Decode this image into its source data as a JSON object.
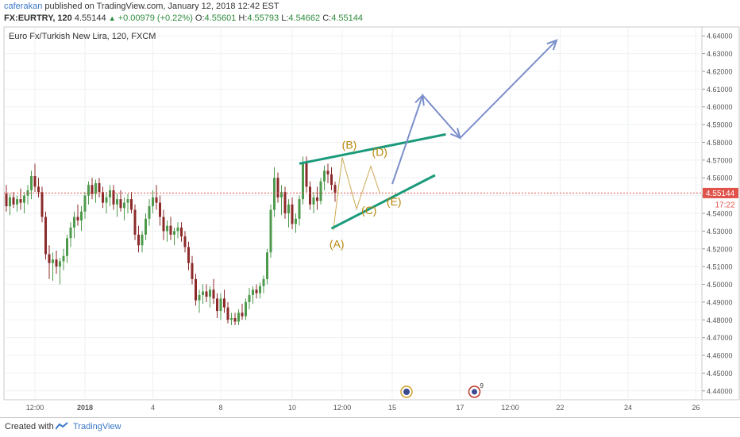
{
  "header": {
    "author": "caferakan",
    "published_text": "published on TradingView.com, January 12, 2018 12:42 EST",
    "symbol": "FX:EURTRY, 120",
    "last": "4.55144",
    "change": "+0.00979 (+0.22%)",
    "open_label": "O:",
    "open": "4.55601",
    "high_label": "H:",
    "high": "4.55793",
    "low_label": "L:",
    "low": "4.54662",
    "close_label": "C:",
    "close": "4.55144"
  },
  "footer": {
    "created_with": "Created with",
    "brand": "TradingView",
    "logo_icon": "tradingview-logo-icon"
  },
  "chart_data": {
    "type": "candlestick",
    "title": "Euro Fx/Turkish New Lira, 120, FXCM",
    "ylim": [
      4.435,
      4.645
    ],
    "y_ticks": [
      "4.44000",
      "4.45000",
      "4.46000",
      "4.47000",
      "4.48000",
      "4.49000",
      "4.50000",
      "4.51000",
      "4.52000",
      "4.53000",
      "4.54000",
      "4.55000",
      "4.56000",
      "4.57000",
      "4.58000",
      "4.59000",
      "4.60000",
      "4.61000",
      "4.62000",
      "4.63000",
      "4.64000"
    ],
    "x_ticks": [
      "12:00",
      "2018",
      "4",
      "8",
      "10",
      "12:00",
      "15",
      "17",
      "12:00",
      "22",
      "24",
      "26"
    ],
    "last_price_label": "4.55144",
    "countdown_label": "17:22",
    "colors": {
      "up": "#4e9a4c",
      "down": "#8c2a2a",
      "wave_lines": "#1a9a7a",
      "projection": "#7b8fcb",
      "wave_labels": "#b8860b",
      "last_price": "#e0524a"
    },
    "candles": [
      {
        "o": 4.551,
        "h": 4.556,
        "l": 4.541,
        "c": 4.544
      },
      {
        "o": 4.544,
        "h": 4.551,
        "l": 4.539,
        "c": 4.549
      },
      {
        "o": 4.549,
        "h": 4.552,
        "l": 4.543,
        "c": 4.545
      },
      {
        "o": 4.545,
        "h": 4.55,
        "l": 4.541,
        "c": 4.548
      },
      {
        "o": 4.548,
        "h": 4.554,
        "l": 4.542,
        "c": 4.546
      },
      {
        "o": 4.546,
        "h": 4.552,
        "l": 4.54,
        "c": 4.55
      },
      {
        "o": 4.55,
        "h": 4.556,
        "l": 4.545,
        "c": 4.553
      },
      {
        "o": 4.553,
        "h": 4.564,
        "l": 4.548,
        "c": 4.561
      },
      {
        "o": 4.561,
        "h": 4.568,
        "l": 4.552,
        "c": 4.555
      },
      {
        "o": 4.555,
        "h": 4.56,
        "l": 4.549,
        "c": 4.552
      },
      {
        "o": 4.552,
        "h": 4.555,
        "l": 4.535,
        "c": 4.538
      },
      {
        "o": 4.538,
        "h": 4.541,
        "l": 4.514,
        "c": 4.517
      },
      {
        "o": 4.517,
        "h": 4.522,
        "l": 4.503,
        "c": 4.512
      },
      {
        "o": 4.512,
        "h": 4.518,
        "l": 4.502,
        "c": 4.514
      },
      {
        "o": 4.514,
        "h": 4.519,
        "l": 4.506,
        "c": 4.51
      },
      {
        "o": 4.51,
        "h": 4.515,
        "l": 4.5,
        "c": 4.513
      },
      {
        "o": 4.513,
        "h": 4.52,
        "l": 4.508,
        "c": 4.516
      },
      {
        "o": 4.516,
        "h": 4.528,
        "l": 4.512,
        "c": 4.526
      },
      {
        "o": 4.526,
        "h": 4.535,
        "l": 4.521,
        "c": 4.532
      },
      {
        "o": 4.532,
        "h": 4.541,
        "l": 4.526,
        "c": 4.538
      },
      {
        "o": 4.538,
        "h": 4.545,
        "l": 4.533,
        "c": 4.536
      },
      {
        "o": 4.536,
        "h": 4.544,
        "l": 4.53,
        "c": 4.541
      },
      {
        "o": 4.541,
        "h": 4.552,
        "l": 4.537,
        "c": 4.55
      },
      {
        "o": 4.55,
        "h": 4.558,
        "l": 4.545,
        "c": 4.556
      },
      {
        "o": 4.556,
        "h": 4.56,
        "l": 4.548,
        "c": 4.551
      },
      {
        "o": 4.551,
        "h": 4.559,
        "l": 4.546,
        "c": 4.557
      },
      {
        "o": 4.557,
        "h": 4.56,
        "l": 4.549,
        "c": 4.552
      },
      {
        "o": 4.552,
        "h": 4.555,
        "l": 4.543,
        "c": 4.546
      },
      {
        "o": 4.546,
        "h": 4.552,
        "l": 4.54,
        "c": 4.549
      },
      {
        "o": 4.549,
        "h": 4.556,
        "l": 4.544,
        "c": 4.553
      },
      {
        "o": 4.553,
        "h": 4.556,
        "l": 4.542,
        "c": 4.545
      },
      {
        "o": 4.545,
        "h": 4.551,
        "l": 4.538,
        "c": 4.548
      },
      {
        "o": 4.548,
        "h": 4.553,
        "l": 4.541,
        "c": 4.543
      },
      {
        "o": 4.543,
        "h": 4.549,
        "l": 4.536,
        "c": 4.546
      },
      {
        "o": 4.546,
        "h": 4.551,
        "l": 4.54,
        "c": 4.548
      },
      {
        "o": 4.548,
        "h": 4.552,
        "l": 4.54,
        "c": 4.542
      },
      {
        "o": 4.542,
        "h": 4.545,
        "l": 4.525,
        "c": 4.528
      },
      {
        "o": 4.528,
        "h": 4.533,
        "l": 4.518,
        "c": 4.522
      },
      {
        "o": 4.522,
        "h": 4.53,
        "l": 4.518,
        "c": 4.528
      },
      {
        "o": 4.528,
        "h": 4.54,
        "l": 4.525,
        "c": 4.537
      },
      {
        "o": 4.537,
        "h": 4.548,
        "l": 4.533,
        "c": 4.544
      },
      {
        "o": 4.544,
        "h": 4.553,
        "l": 4.54,
        "c": 4.549
      },
      {
        "o": 4.549,
        "h": 4.556,
        "l": 4.542,
        "c": 4.546
      },
      {
        "o": 4.546,
        "h": 4.55,
        "l": 4.533,
        "c": 4.538
      },
      {
        "o": 4.538,
        "h": 4.542,
        "l": 4.525,
        "c": 4.53
      },
      {
        "o": 4.53,
        "h": 4.536,
        "l": 4.524,
        "c": 4.533
      },
      {
        "o": 4.533,
        "h": 4.538,
        "l": 4.525,
        "c": 4.528
      },
      {
        "o": 4.528,
        "h": 4.532,
        "l": 4.522,
        "c": 4.53
      },
      {
        "o": 4.53,
        "h": 4.535,
        "l": 4.526,
        "c": 4.532
      },
      {
        "o": 4.532,
        "h": 4.535,
        "l": 4.524,
        "c": 4.527
      },
      {
        "o": 4.527,
        "h": 4.53,
        "l": 4.518,
        "c": 4.521
      },
      {
        "o": 4.521,
        "h": 4.524,
        "l": 4.508,
        "c": 4.512
      },
      {
        "o": 4.512,
        "h": 4.516,
        "l": 4.5,
        "c": 4.503
      },
      {
        "o": 4.503,
        "h": 4.506,
        "l": 4.488,
        "c": 4.491
      },
      {
        "o": 4.491,
        "h": 4.497,
        "l": 4.484,
        "c": 4.494
      },
      {
        "o": 4.494,
        "h": 4.5,
        "l": 4.489,
        "c": 4.496
      },
      {
        "o": 4.496,
        "h": 4.5,
        "l": 4.49,
        "c": 4.493
      },
      {
        "o": 4.493,
        "h": 4.499,
        "l": 4.487,
        "c": 4.497
      },
      {
        "o": 4.497,
        "h": 4.503,
        "l": 4.489,
        "c": 4.492
      },
      {
        "o": 4.492,
        "h": 4.495,
        "l": 4.481,
        "c": 4.485
      },
      {
        "o": 4.485,
        "h": 4.495,
        "l": 4.48,
        "c": 4.492
      },
      {
        "o": 4.492,
        "h": 4.497,
        "l": 4.484,
        "c": 4.487
      },
      {
        "o": 4.487,
        "h": 4.49,
        "l": 4.478,
        "c": 4.48
      },
      {
        "o": 4.48,
        "h": 4.484,
        "l": 4.477,
        "c": 4.481
      },
      {
        "o": 4.481,
        "h": 4.484,
        "l": 4.477,
        "c": 4.479
      },
      {
        "o": 4.479,
        "h": 4.486,
        "l": 4.477,
        "c": 4.484
      },
      {
        "o": 4.484,
        "h": 4.489,
        "l": 4.48,
        "c": 4.482
      },
      {
        "o": 4.482,
        "h": 4.492,
        "l": 4.48,
        "c": 4.49
      },
      {
        "o": 4.49,
        "h": 4.498,
        "l": 4.486,
        "c": 4.494
      },
      {
        "o": 4.494,
        "h": 4.499,
        "l": 4.489,
        "c": 4.497
      },
      {
        "o": 4.497,
        "h": 4.5,
        "l": 4.492,
        "c": 4.495
      },
      {
        "o": 4.495,
        "h": 4.501,
        "l": 4.492,
        "c": 4.499
      },
      {
        "o": 4.499,
        "h": 4.505,
        "l": 4.495,
        "c": 4.503
      },
      {
        "o": 4.503,
        "h": 4.52,
        "l": 4.5,
        "c": 4.518
      },
      {
        "o": 4.518,
        "h": 4.545,
        "l": 4.515,
        "c": 4.542
      },
      {
        "o": 4.542,
        "h": 4.566,
        "l": 4.538,
        "c": 4.56
      },
      {
        "o": 4.56,
        "h": 4.563,
        "l": 4.546,
        "c": 4.549
      },
      {
        "o": 4.549,
        "h": 4.556,
        "l": 4.539,
        "c": 4.552
      },
      {
        "o": 4.552,
        "h": 4.555,
        "l": 4.537,
        "c": 4.54
      },
      {
        "o": 4.54,
        "h": 4.548,
        "l": 4.532,
        "c": 4.545
      },
      {
        "o": 4.545,
        "h": 4.549,
        "l": 4.531,
        "c": 4.534
      },
      {
        "o": 4.534,
        "h": 4.54,
        "l": 4.529,
        "c": 4.537
      },
      {
        "o": 4.537,
        "h": 4.55,
        "l": 4.533,
        "c": 4.548
      },
      {
        "o": 4.548,
        "h": 4.572,
        "l": 4.545,
        "c": 4.569
      },
      {
        "o": 4.569,
        "h": 4.572,
        "l": 4.552,
        "c": 4.555
      },
      {
        "o": 4.555,
        "h": 4.558,
        "l": 4.542,
        "c": 4.545
      },
      {
        "o": 4.545,
        "h": 4.552,
        "l": 4.54,
        "c": 4.549
      },
      {
        "o": 4.549,
        "h": 4.555,
        "l": 4.542,
        "c": 4.547
      },
      {
        "o": 4.547,
        "h": 4.56,
        "l": 4.545,
        "c": 4.558
      },
      {
        "o": 4.558,
        "h": 4.567,
        "l": 4.553,
        "c": 4.564
      },
      {
        "o": 4.564,
        "h": 4.568,
        "l": 4.557,
        "c": 4.562
      },
      {
        "o": 4.562,
        "h": 4.566,
        "l": 4.553,
        "c": 4.556
      },
      {
        "o": 4.556,
        "h": 4.5579,
        "l": 4.5466,
        "c": 4.5514
      }
    ],
    "annotations": {
      "wave_labels": [
        {
          "text": "(A)",
          "x": 92.5,
          "y": 4.5205
        },
        {
          "text": "(B)",
          "x": 96,
          "y": 4.5765
        },
        {
          "text": "(C)",
          "x": 101.5,
          "y": 4.5395
        },
        {
          "text": "(D)",
          "x": 104.5,
          "y": 4.5725
        },
        {
          "text": "(E)",
          "x": 108.5,
          "y": 4.5445
        }
      ],
      "wave_path": [
        [
          91.5,
          4.5305
        ],
        [
          94,
          4.5715
        ],
        [
          98,
          4.5425
        ],
        [
          102,
          4.5665
        ],
        [
          104.5,
          4.5515
        ]
      ],
      "trend_lines": [
        [
          [
            82,
            4.568
          ],
          [
            123,
            4.5845
          ]
        ],
        [
          [
            91,
            4.5315
          ],
          [
            120,
            4.5615
          ]
        ]
      ],
      "projection_path": [
        [
          108,
          4.5565
        ],
        [
          116.5,
          4.6065
        ],
        [
          127,
          4.5825
        ],
        [
          154,
          4.6375
        ]
      ],
      "event_icons": [
        {
          "name": "economic-event-icon",
          "x": 112
        },
        {
          "name": "dividend-event-icon",
          "x": 131,
          "badge": "9"
        }
      ]
    }
  }
}
